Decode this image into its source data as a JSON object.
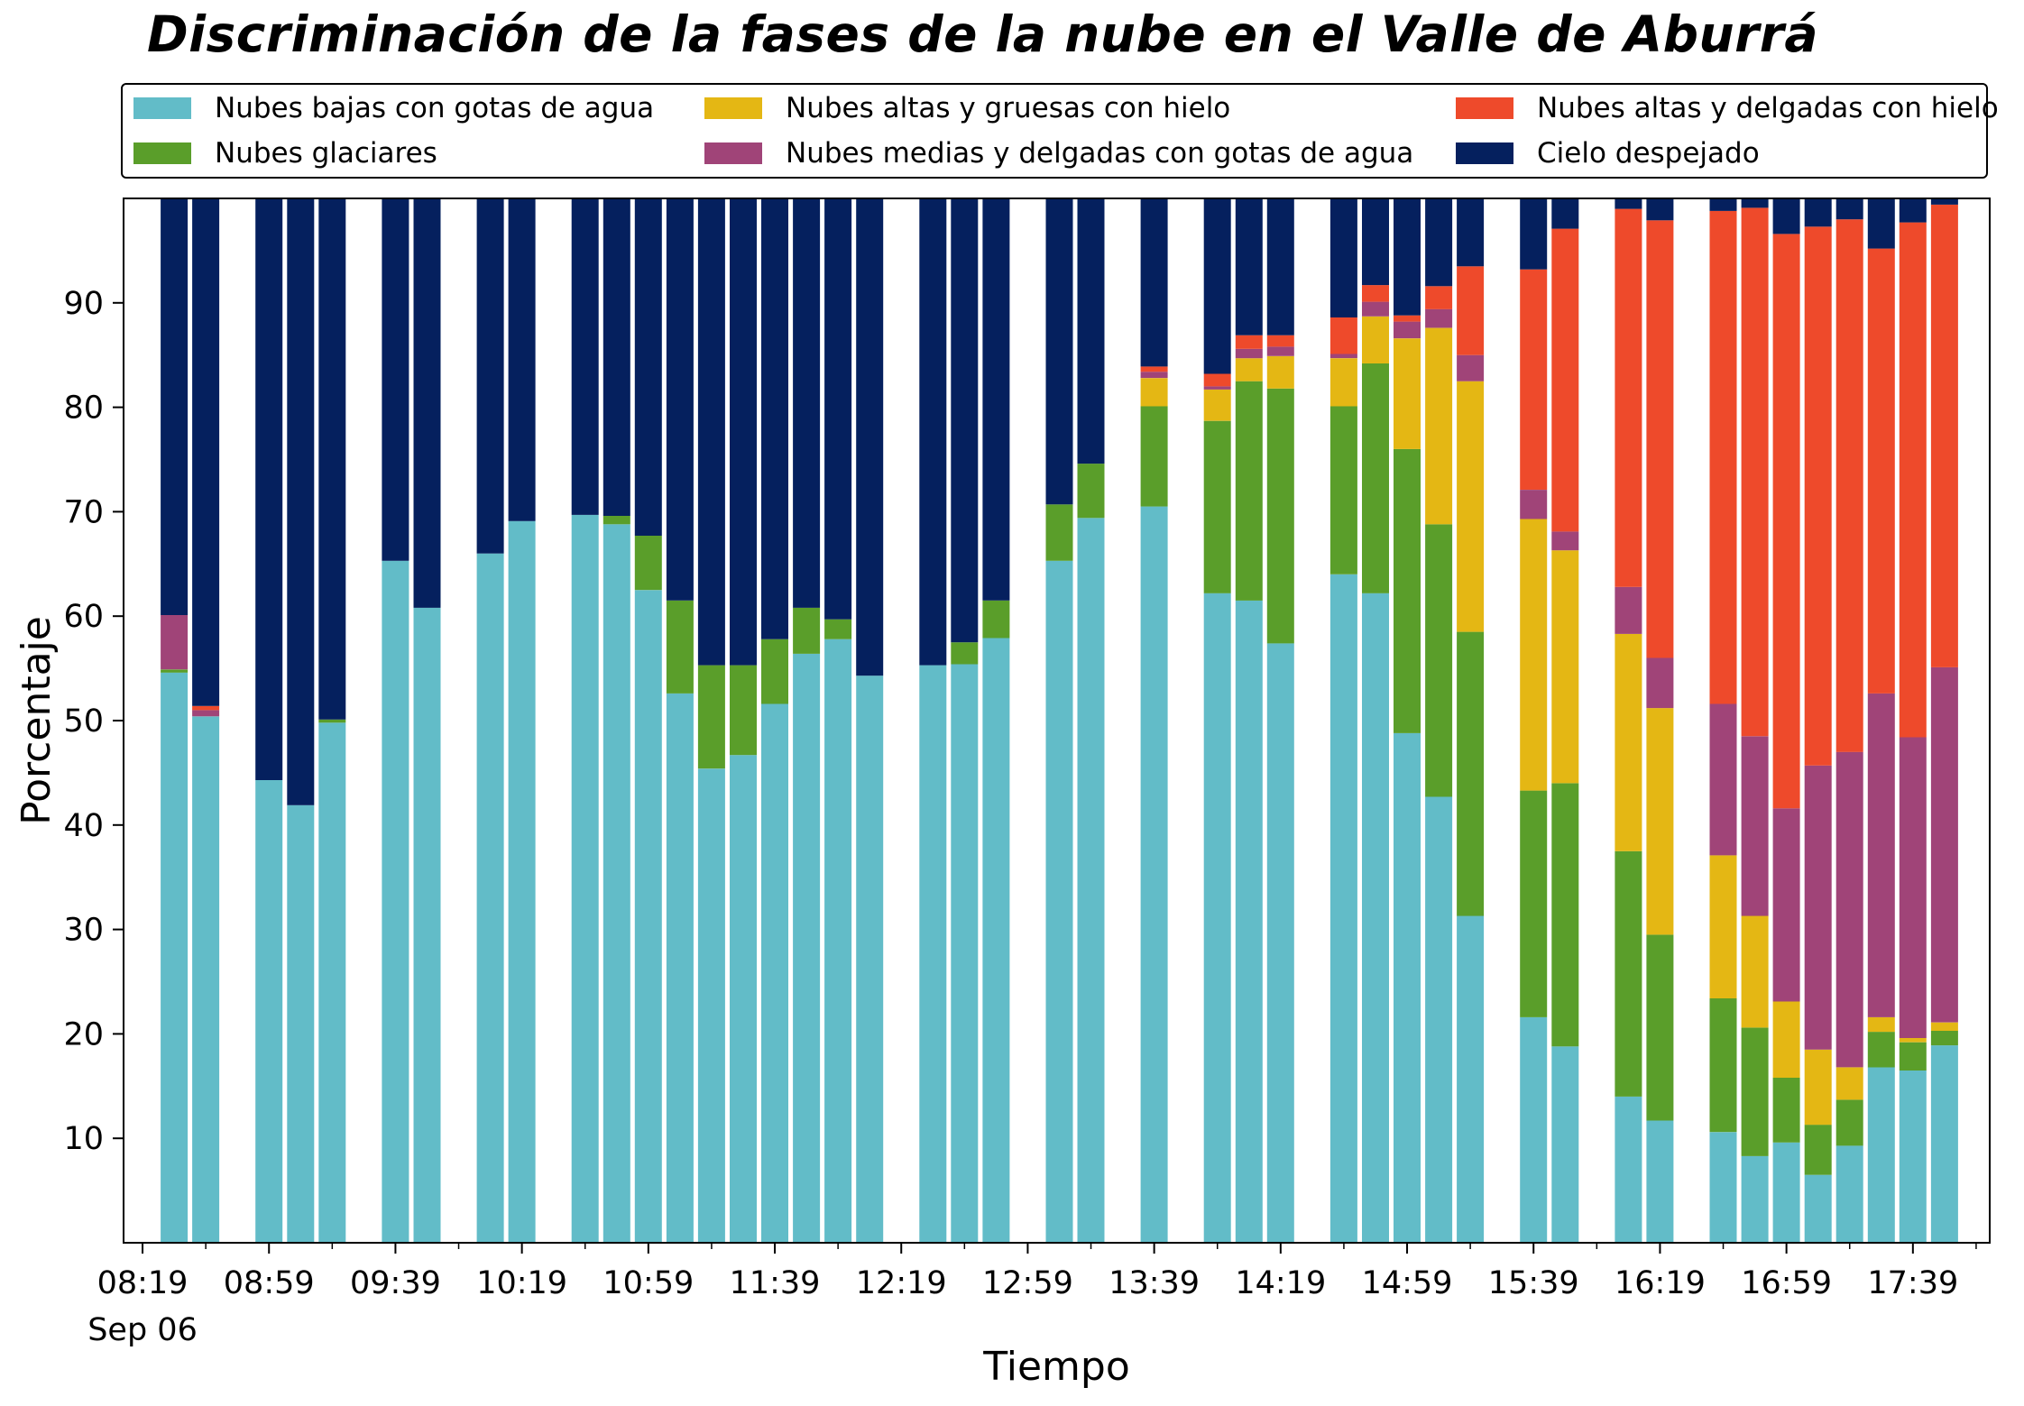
{
  "chart_data": {
    "type": "bar",
    "stacked": true,
    "title": "Discriminación de la fases de la nube en el Valle de Aburrá",
    "xlabel": "Tiempo",
    "ylabel": "Porcentaje",
    "ylim": [
      0,
      100
    ],
    "yticks": [
      10,
      20,
      30,
      40,
      50,
      60,
      70,
      80,
      90
    ],
    "x_tick_labels": [
      "08:19",
      "08:59",
      "09:39",
      "10:19",
      "10:59",
      "11:39",
      "12:19",
      "12:59",
      "13:39",
      "14:19",
      "14:59",
      "15:39",
      "16:19",
      "16:59",
      "17:39"
    ],
    "x_date_label": "Sep 06",
    "x_range_minutes": [
      "08:13",
      "18:08"
    ],
    "bar_interval_minutes": 10,
    "legend_position": "top (above plot, 3 columns)",
    "grid": false,
    "times": [
      "08:29",
      "08:39",
      "08:59",
      "09:09",
      "09:19",
      "09:39",
      "09:49",
      "10:09",
      "10:19",
      "10:39",
      "10:49",
      "10:59",
      "11:09",
      "11:19",
      "11:29",
      "11:39",
      "11:49",
      "11:59",
      "12:09",
      "12:29",
      "12:39",
      "12:49",
      "13:09",
      "13:19",
      "13:39",
      "13:59",
      "14:09",
      "14:19",
      "14:39",
      "14:49",
      "14:59",
      "15:09",
      "15:19",
      "15:39",
      "15:49",
      "16:09",
      "16:19",
      "16:39",
      "16:49",
      "16:59",
      "17:09",
      "17:19",
      "17:29",
      "17:39",
      "17:49"
    ],
    "series": [
      {
        "name": "Nubes bajas con gotas de agua",
        "color": "#62bcc8",
        "values": [
          54.6,
          50.4,
          44.3,
          41.9,
          49.8,
          65.3,
          60.8,
          66.0,
          69.1,
          69.7,
          68.8,
          62.5,
          52.6,
          45.4,
          46.7,
          51.6,
          56.4,
          57.8,
          54.3,
          55.3,
          55.4,
          57.9,
          65.3,
          69.4,
          70.5,
          62.2,
          61.5,
          57.4,
          64.0,
          62.2,
          48.8,
          42.7,
          31.3,
          21.6,
          18.8,
          14.0,
          11.7,
          10.6,
          8.3,
          9.6,
          6.5,
          9.3,
          16.8,
          16.5,
          18.9
        ]
      },
      {
        "name": "Nubes glaciares",
        "color": "#5a9e2a",
        "values": [
          0.3,
          0,
          0,
          0,
          0.3,
          0,
          0,
          0,
          0,
          0,
          0.8,
          5.2,
          8.9,
          9.9,
          8.6,
          6.2,
          4.4,
          1.9,
          0,
          0,
          2.1,
          3.6,
          5.4,
          5.2,
          9.6,
          16.5,
          21.0,
          24.4,
          16.1,
          22.0,
          27.2,
          26.1,
          27.2,
          21.7,
          25.2,
          23.5,
          17.8,
          12.8,
          12.3,
          6.2,
          4.8,
          4.4,
          3.4,
          2.7,
          1.4
        ]
      },
      {
        "name": "Nubes altas y gruesas con hielo",
        "color": "#e4b714",
        "values": [
          0,
          0,
          0,
          0,
          0,
          0,
          0,
          0,
          0,
          0,
          0,
          0,
          0,
          0,
          0,
          0,
          0,
          0,
          0,
          0,
          0,
          0,
          0,
          0,
          2.7,
          3.0,
          2.2,
          3.1,
          4.6,
          4.5,
          10.6,
          18.8,
          24.0,
          26.0,
          22.3,
          20.8,
          21.7,
          13.7,
          10.7,
          7.3,
          7.2,
          3.1,
          1.4,
          0.4,
          0.8
        ]
      },
      {
        "name": "Nubes medias y delgadas con gotas de agua",
        "color": "#a04478",
        "values": [
          5.2,
          0.6,
          0,
          0,
          0,
          0,
          0,
          0,
          0,
          0,
          0,
          0,
          0,
          0,
          0,
          0,
          0,
          0,
          0,
          0,
          0,
          0,
          0,
          0,
          0.6,
          0.3,
          0.9,
          0.9,
          0.4,
          1.4,
          1.6,
          1.8,
          2.5,
          2.8,
          1.8,
          4.5,
          4.8,
          14.5,
          17.2,
          18.5,
          27.2,
          30.2,
          31.0,
          28.8,
          34.0
        ]
      },
      {
        "name": "Nubes altas y delgadas con hielo",
        "color": "#ee4a2b",
        "values": [
          0,
          0.4,
          0,
          0,
          0,
          0,
          0,
          0,
          0,
          0,
          0,
          0,
          0,
          0,
          0,
          0,
          0,
          0,
          0,
          0,
          0,
          0,
          0,
          0,
          0.5,
          1.2,
          1.3,
          1.1,
          3.5,
          1.6,
          0.6,
          2.2,
          8.5,
          21.1,
          29.0,
          36.2,
          41.9,
          47.2,
          50.6,
          55.0,
          51.6,
          51.0,
          42.6,
          49.3,
          44.3
        ]
      },
      {
        "name": "Cielo despejado",
        "color": "#05205e",
        "values": [
          39.9,
          48.6,
          55.7,
          58.1,
          49.9,
          34.7,
          39.2,
          34.0,
          30.9,
          30.3,
          30.4,
          32.3,
          38.5,
          44.7,
          44.7,
          42.2,
          39.2,
          40.3,
          45.7,
          44.7,
          42.5,
          38.5,
          29.3,
          25.4,
          16.1,
          16.8,
          13.1,
          13.1,
          11.4,
          8.3,
          11.2,
          8.4,
          6.5,
          6.8,
          2.9,
          1.0,
          2.1,
          1.2,
          0.9,
          3.4,
          2.7,
          2.0,
          4.8,
          2.3,
          0.6
        ]
      }
    ]
  }
}
